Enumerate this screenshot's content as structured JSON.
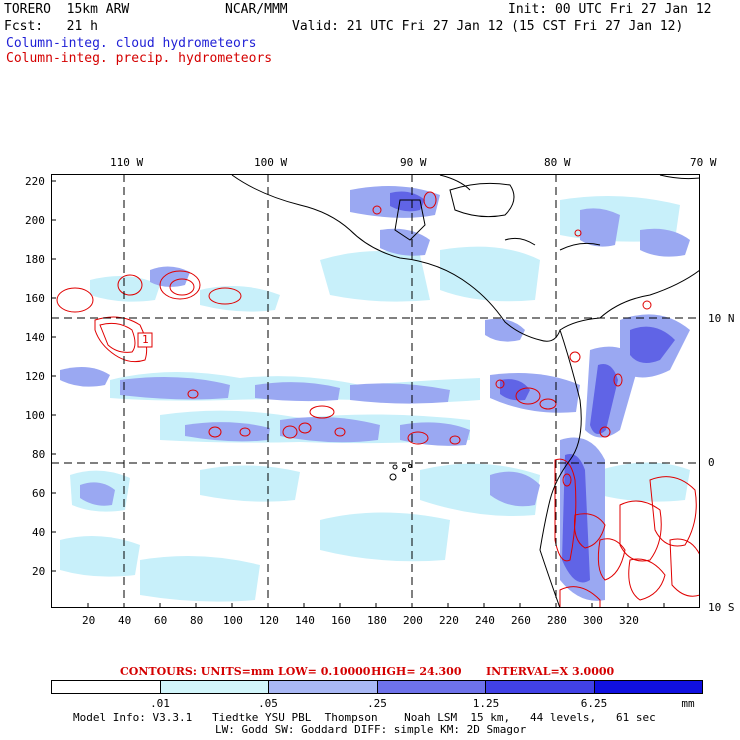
{
  "header": {
    "model": "TORERO  15km ARW",
    "org": "NCAR/MMM",
    "init": "Init: 00 UTC Fri 27 Jan 12",
    "fcst": "Fcst:   21 h",
    "valid": "Valid: 21 UTC Fri 27 Jan 12 (15 CST Fri 27 Jan 12)",
    "field_cloud": "Column-integ. cloud hydrometeors",
    "field_precip": "Column-integ. precip. hydrometeors"
  },
  "map": {
    "lon_labels": [
      "110 W",
      "100 W",
      "90 W",
      "80 W",
      "70 W"
    ],
    "lat_labels": [
      "10 N",
      "0",
      "10 S"
    ],
    "y_ticks": [
      "220",
      "200",
      "180",
      "160",
      "140",
      "120",
      "100",
      "80",
      "60",
      "40",
      "20"
    ],
    "x_ticks": [
      "20",
      "40",
      "60",
      "80",
      "100",
      "120",
      "140",
      "160",
      "180",
      "200",
      "220",
      "240",
      "260",
      "280",
      "300",
      "320"
    ],
    "contour_label": "1"
  },
  "contour_info": {
    "units": "CONTOURS:  UNITS=mm  LOW= 0.10000",
    "high": "HIGH=  24.300",
    "interval": "INTERVAL=X  3.0000"
  },
  "colorbar": {
    "labels": [
      ".01",
      ".05",
      ".25",
      "1.25",
      "6.25",
      "mm"
    ],
    "colors": [
      "#ffffff",
      "#d2f6fb",
      "#a9b8f5",
      "#6e72ea",
      "#4141e6",
      "#1010e0"
    ]
  },
  "footer": {
    "line1": "Model Info: V3.3.1   Tiedtke YSU PBL  Thompson    Noah LSM  15 km,   44 levels,   61 sec",
    "line2": "LW: Godd SW: Goddard DIFF: simple KM: 2D Smagor"
  },
  "colors": {
    "cloud_light": "#c8f0fa",
    "cloud_mid": "#9aa8f2",
    "cloud_dark": "#6064e6",
    "precip": "#e00000",
    "title_blue": "#1f1fd6",
    "title_red": "#d40000"
  }
}
